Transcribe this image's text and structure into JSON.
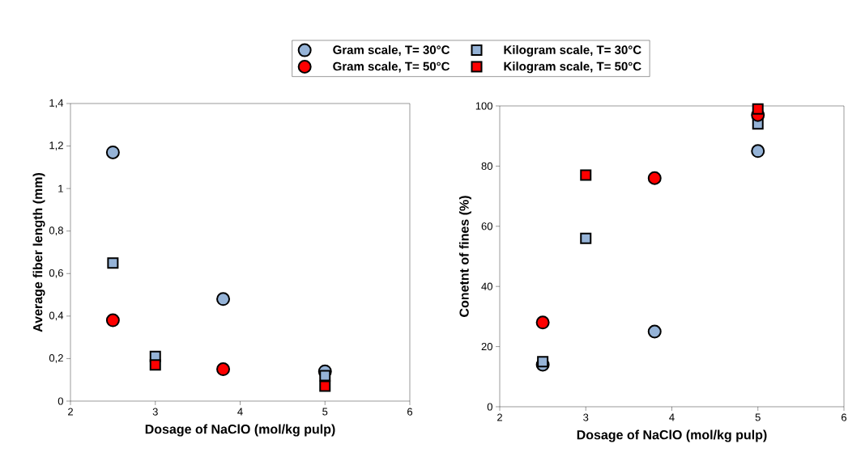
{
  "chart_data": [
    {
      "type": "scatter",
      "xlabel": "Dosage of NaClO (mol/kg pulp)",
      "ylabel": "Average fiber length (mm)",
      "xlim": [
        2,
        6
      ],
      "xticks": [
        2,
        3,
        4,
        5,
        6
      ],
      "ylim": [
        0,
        1.4
      ],
      "yticks": [
        0,
        {
          "value": 0.2,
          "label": "0,2"
        },
        {
          "value": 0.4,
          "label": "0,4"
        },
        {
          "value": 0.6,
          "label": "0,6"
        },
        {
          "value": 0.8,
          "label": "0,8"
        },
        1,
        {
          "value": 1.2,
          "label": "1,2"
        },
        {
          "value": 1.4,
          "label": "1,4"
        }
      ],
      "legend": "top",
      "grid": false,
      "series": [
        {
          "name": "Gram scale, T= 30°C",
          "color": "#95b3d7",
          "marker": "circle",
          "x": [
            2.5,
            3.8,
            5
          ],
          "values": [
            1.17,
            0.48,
            0.14
          ]
        },
        {
          "name": "Kilogram scale, T= 30°C",
          "color": "#95b3d7",
          "marker": "square",
          "x": [
            2.5,
            3,
            5
          ],
          "values": [
            0.65,
            0.21,
            0.12
          ]
        },
        {
          "name": "Gram scale, T= 50°C",
          "color": "#ff0000",
          "marker": "circle",
          "x": [
            2.5,
            3.8
          ],
          "values": [
            0.38,
            0.15
          ]
        },
        {
          "name": "Kilogram scale, T= 50°C",
          "color": "#ff0000",
          "marker": "square",
          "x": [
            3,
            5
          ],
          "values": [
            0.17,
            0.07
          ]
        }
      ]
    },
    {
      "type": "scatter",
      "xlabel": "Dosage of NaClO (mol/kg pulp)",
      "ylabel": "Conetnt of fines (%)",
      "xlim": [
        2,
        6
      ],
      "xticks": [
        2,
        3,
        4,
        5,
        6
      ],
      "ylim": [
        0,
        100
      ],
      "yticks": [
        0,
        20,
        40,
        60,
        80,
        100
      ],
      "grid": false,
      "series": [
        {
          "color": "#95b3d7",
          "marker": "circle",
          "x": [
            2.5,
            3.8,
            5
          ],
          "values": [
            14,
            25,
            85
          ]
        },
        {
          "color": "#95b3d7",
          "marker": "square",
          "x": [
            2.5,
            3,
            5
          ],
          "values": [
            15,
            56,
            94
          ]
        },
        {
          "color": "#ff0000",
          "marker": "circle",
          "x": [
            2.5,
            3.8,
            5
          ],
          "values": [
            28,
            76,
            97
          ]
        },
        {
          "color": "#ff0000",
          "marker": "square",
          "x": [
            3,
            5
          ],
          "values": [
            77,
            99
          ]
        }
      ]
    }
  ]
}
